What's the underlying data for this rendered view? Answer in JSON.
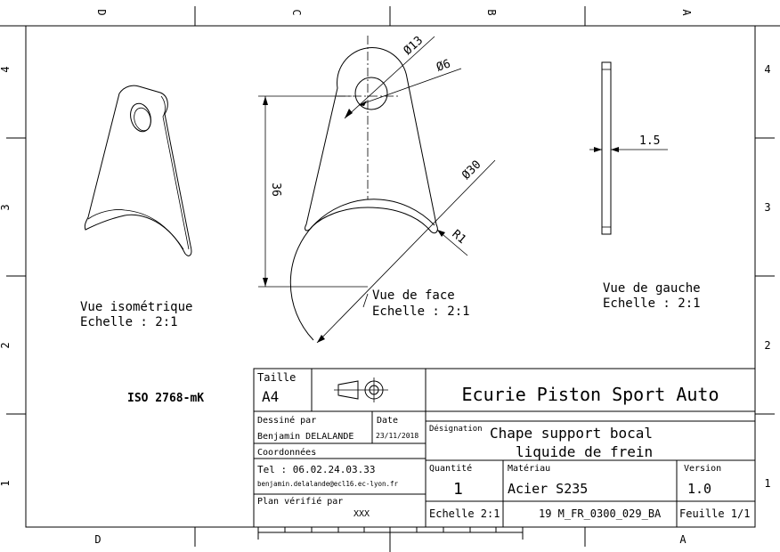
{
  "zones": {
    "columns_top": [
      "D",
      "C",
      "B",
      "A"
    ],
    "columns_bottom": [
      "D",
      "A"
    ],
    "rows": [
      "4",
      "3",
      "2",
      "1"
    ]
  },
  "views": {
    "iso": {
      "title": "Vue isométrique",
      "scale": "Echelle :  2:1"
    },
    "front": {
      "title": "Vue de face",
      "scale": "Echelle :  2:1"
    },
    "left": {
      "title": "Vue de gauche",
      "scale": "Echelle :  2:1"
    }
  },
  "dimensions": {
    "d13": "Ø13",
    "d6": "Ø6",
    "d30": "Ø30",
    "r1": "R1",
    "h36": "36",
    "t15": "1.5"
  },
  "tolerance_note": "ISO 2768-mK",
  "title_block": {
    "size_label": "Taille",
    "size_value": "A4",
    "company": "Ecurie Piston Sport Auto",
    "drawn_by_label": "Dessiné par",
    "drawn_by_value": "Benjamin DELALANDE",
    "date_label": "Date",
    "date_value": "23/11/2018",
    "coords_label": "Coordonnées",
    "tel": "Tel : 06.02.24.03.33",
    "email": "benjamin.delalande@ecl16.ec-lyon.fr",
    "plan_label": "Plan vérifié par",
    "plan_value": "XXX",
    "designation_label": "Désignation",
    "designation_line1": "Chape support bocal",
    "designation_line2": "liquide de frein",
    "quantity_label": "Quantité",
    "quantity_value": "1",
    "material_label": "Matériau",
    "material_value": "Acier S235",
    "version_label": "Version",
    "version_value": "1.0",
    "scale_value": "Echelle 2:1",
    "reference": "19 M_FR_0300_029_BA",
    "sheet": "Feuille 1/1"
  }
}
